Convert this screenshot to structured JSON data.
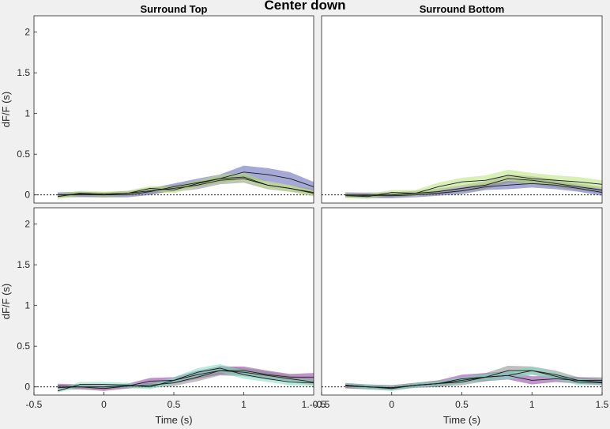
{
  "figure": {
    "title": "Center down",
    "colors": {
      "background": "#f0f0f0",
      "axes_bg": "#ffffff",
      "axis": "#262626",
      "blue": "#5b63b5",
      "green": "#b9e27d",
      "gray": "#8c8c8c",
      "purple": "#8a3d9e",
      "teal": "#7fdcc0"
    }
  },
  "chart_data": [
    {
      "type": "line",
      "panel": "top-left",
      "title": "Surround Top",
      "xlabel": "",
      "ylabel": "dF/F (s)",
      "xlim": [
        -0.5,
        1.5
      ],
      "ylim": [
        -0.1,
        2.2
      ],
      "yticks": [
        0,
        0.5,
        1,
        1.5,
        2
      ],
      "ytick_labels": [
        "0",
        "0.5",
        "1",
        "1.5",
        "2"
      ],
      "xticks": [],
      "xtick_labels": [],
      "x": [
        -0.33,
        -0.17,
        0,
        0.17,
        0.33,
        0.5,
        0.67,
        0.83,
        1.0,
        1.17,
        1.33,
        1.5
      ],
      "series": [
        {
          "color": "blue",
          "values": [
            0,
            0.01,
            0,
            0,
            0.04,
            0.1,
            0.15,
            0.2,
            0.28,
            0.25,
            0.2,
            0.1
          ],
          "band": [
            0.03,
            0.03,
            0.03,
            0.03,
            0.04,
            0.04,
            0.05,
            0.05,
            0.08,
            0.08,
            0.08,
            0.06
          ]
        },
        {
          "color": "gray",
          "values": [
            0,
            0,
            0,
            0.02,
            0.05,
            0.08,
            0.12,
            0.18,
            0.2,
            0.12,
            0.08,
            0.03
          ],
          "band": [
            0.03,
            0.03,
            0.03,
            0.03,
            0.04,
            0.04,
            0.05,
            0.05,
            0.05,
            0.05,
            0.04,
            0.04
          ]
        },
        {
          "color": "green",
          "values": [
            -0.02,
            0.02,
            0.01,
            0.02,
            0.08,
            0.06,
            0.14,
            0.2,
            0.22,
            0.12,
            0.08,
            0.02
          ],
          "band": [
            0.03,
            0.03,
            0.03,
            0.03,
            0.03,
            0.04,
            0.04,
            0.05,
            0.05,
            0.04,
            0.04,
            0.04
          ]
        }
      ]
    },
    {
      "type": "line",
      "panel": "top-right",
      "title": "Surround Bottom",
      "xlabel": "",
      "ylabel": "",
      "xlim": [
        -0.5,
        1.5
      ],
      "ylim": [
        -0.1,
        2.2
      ],
      "yticks": [],
      "ytick_labels": [],
      "xticks": [],
      "xtick_labels": [],
      "x": [
        -0.33,
        -0.17,
        0,
        0.17,
        0.33,
        0.5,
        0.67,
        0.83,
        1.0,
        1.17,
        1.33,
        1.5
      ],
      "series": [
        {
          "color": "blue",
          "values": [
            0,
            -0.01,
            -0.01,
            0,
            0.02,
            0.05,
            0.1,
            0.12,
            0.14,
            0.12,
            0.08,
            0.03
          ],
          "band": [
            0.03,
            0.03,
            0.03,
            0.03,
            0.03,
            0.04,
            0.04,
            0.05,
            0.05,
            0.05,
            0.04,
            0.04
          ]
        },
        {
          "color": "gray",
          "values": [
            0,
            0,
            0,
            0.02,
            0.04,
            0.08,
            0.12,
            0.2,
            0.18,
            0.14,
            0.1,
            0.06
          ],
          "band": [
            0.03,
            0.03,
            0.03,
            0.03,
            0.04,
            0.04,
            0.05,
            0.05,
            0.05,
            0.05,
            0.04,
            0.04
          ]
        },
        {
          "color": "green",
          "values": [
            -0.01,
            -0.02,
            0.03,
            0.02,
            0.1,
            0.16,
            0.18,
            0.24,
            0.2,
            0.18,
            0.16,
            0.13
          ],
          "band": [
            0.03,
            0.03,
            0.03,
            0.04,
            0.05,
            0.05,
            0.06,
            0.07,
            0.07,
            0.06,
            0.06,
            0.05
          ]
        }
      ]
    },
    {
      "type": "line",
      "panel": "bottom-left",
      "title": "",
      "xlabel": "Time (s)",
      "ylabel": "dF/F (s)",
      "xlim": [
        -0.5,
        1.5
      ],
      "ylim": [
        -0.1,
        2.2
      ],
      "yticks": [
        0,
        0.5,
        1,
        1.5,
        2
      ],
      "ytick_labels": [
        "0",
        "0.5",
        "1",
        "1.5",
        "2"
      ],
      "xticks": [
        -0.5,
        0,
        0.5,
        1
      ],
      "xtick_labels": [
        "-0.5",
        "0",
        "0.5",
        "1"
      ],
      "x_overlap_label": "1.-0.5",
      "x": [
        -0.33,
        -0.17,
        0,
        0.17,
        0.33,
        0.5,
        0.67,
        0.83,
        1.0,
        1.17,
        1.33,
        1.5
      ],
      "series": [
        {
          "color": "purple",
          "values": [
            0.01,
            0.0,
            -0.02,
            0.01,
            0.07,
            0.08,
            0.15,
            0.2,
            0.2,
            0.15,
            0.12,
            0.12
          ],
          "band": [
            0.03,
            0.03,
            0.03,
            0.03,
            0.04,
            0.04,
            0.05,
            0.05,
            0.05,
            0.05,
            0.04,
            0.05
          ]
        },
        {
          "color": "gray",
          "values": [
            -0.01,
            0.0,
            0.0,
            0.01,
            0.02,
            0.05,
            0.12,
            0.2,
            0.18,
            0.14,
            0.1,
            0.06
          ],
          "band": [
            0.03,
            0.03,
            0.03,
            0.03,
            0.03,
            0.04,
            0.05,
            0.06,
            0.05,
            0.05,
            0.04,
            0.04
          ]
        },
        {
          "color": "teal",
          "values": [
            -0.05,
            0.03,
            0.03,
            0.02,
            0.0,
            0.08,
            0.18,
            0.23,
            0.15,
            0.1,
            0.06,
            0.05
          ],
          "band": [
            0.02,
            0.03,
            0.03,
            0.03,
            0.03,
            0.04,
            0.05,
            0.05,
            0.05,
            0.04,
            0.04,
            0.04
          ]
        }
      ]
    },
    {
      "type": "line",
      "panel": "bottom-right",
      "title": "",
      "xlabel": "Time (s)",
      "ylabel": "",
      "xlim": [
        -0.5,
        1.5
      ],
      "ylim": [
        -0.1,
        2.2
      ],
      "yticks": [],
      "ytick_labels": [],
      "xticks": [
        -0.5,
        0,
        0.5,
        1,
        1.5
      ],
      "xtick_labels": [
        "-0.5",
        "0",
        "0.5",
        "1",
        "1.5"
      ],
      "x": [
        -0.33,
        -0.17,
        0,
        0.17,
        0.33,
        0.5,
        0.67,
        0.83,
        1.0,
        1.17,
        1.33,
        1.5
      ],
      "series": [
        {
          "color": "purple",
          "values": [
            0.01,
            0.0,
            -0.01,
            0.02,
            0.04,
            0.1,
            0.12,
            0.14,
            0.08,
            0.1,
            0.08,
            0.06
          ],
          "band": [
            0.03,
            0.03,
            0.03,
            0.03,
            0.04,
            0.05,
            0.05,
            0.05,
            0.05,
            0.04,
            0.04,
            0.04
          ]
        },
        {
          "color": "gray",
          "values": [
            0.02,
            0.0,
            -0.01,
            0.02,
            0.04,
            0.06,
            0.12,
            0.2,
            0.2,
            0.15,
            0.08,
            0.08
          ],
          "band": [
            0.03,
            0.03,
            0.03,
            0.03,
            0.04,
            0.04,
            0.05,
            0.06,
            0.05,
            0.05,
            0.04,
            0.04
          ]
        },
        {
          "color": "teal",
          "values": [
            0.02,
            0.0,
            -0.02,
            0.02,
            0.04,
            0.08,
            0.12,
            0.14,
            0.2,
            0.13,
            0.06,
            0.05
          ],
          "band": [
            0.02,
            0.03,
            0.03,
            0.03,
            0.03,
            0.04,
            0.04,
            0.05,
            0.05,
            0.04,
            0.04,
            0.03
          ]
        }
      ]
    }
  ]
}
